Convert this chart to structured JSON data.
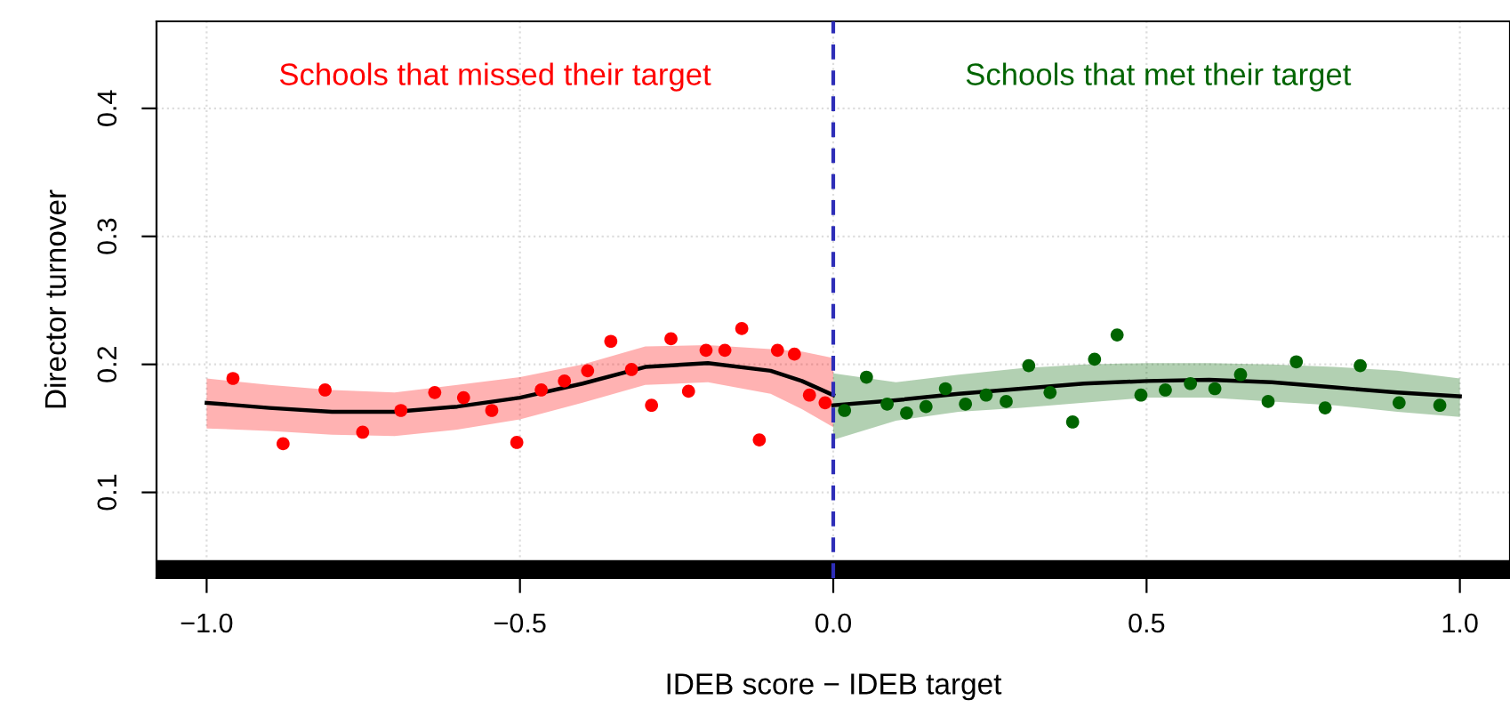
{
  "chart_data": {
    "type": "scatter",
    "xlabel": "IDEB score − IDEB target",
    "ylabel": "Director turnover",
    "annotations": [
      "Schools that missed their target",
      "Schools that met their target"
    ],
    "xlim": [
      -1.08,
      1.08
    ],
    "ylim": [
      0.033,
      0.468
    ],
    "xticks": [
      {
        "value": -1,
        "label": "−1.0"
      },
      {
        "value": -0.5,
        "label": "−0.5"
      },
      {
        "value": 0,
        "label": "0.0"
      },
      {
        "value": 0.5,
        "label": "0.5"
      },
      {
        "value": 1,
        "label": "1.0"
      }
    ],
    "yticks": [
      0.1,
      0.2,
      0.3,
      0.4
    ],
    "grid": true,
    "legend": false,
    "marker": "circle",
    "ref_lines": [
      {
        "axis": "x",
        "value": 0,
        "color": "#2e2eb8",
        "line_style": "dashed"
      }
    ],
    "bands": [
      {
        "axis": "y",
        "from": 0.033,
        "to": 0.047,
        "color": "#000000"
      }
    ],
    "series": [
      {
        "type": "line",
        "marker": "none",
        "color": "#000000",
        "x": [
          -1.0,
          -0.9,
          -0.8,
          -0.7,
          -0.6,
          -0.5,
          -0.4,
          -0.3,
          -0.2,
          -0.1,
          -0.05,
          0.0
        ],
        "values": [
          0.17,
          0.166,
          0.163,
          0.163,
          0.167,
          0.174,
          0.185,
          0.198,
          0.201,
          0.195,
          0.187,
          0.176
        ],
        "lower": [
          0.15,
          0.148,
          0.145,
          0.144,
          0.149,
          0.157,
          0.17,
          0.184,
          0.186,
          0.177,
          0.165,
          0.151
        ],
        "upper": [
          0.189,
          0.184,
          0.18,
          0.178,
          0.184,
          0.19,
          0.2,
          0.214,
          0.215,
          0.212,
          0.21,
          0.205
        ]
      },
      {
        "color": "#ff0000",
        "x": [
          -0.958,
          -0.878,
          -0.811,
          -0.751,
          -0.69,
          -0.636,
          -0.59,
          -0.545,
          -0.505,
          -0.466,
          -0.429,
          -0.392,
          -0.355,
          -0.322,
          -0.29,
          -0.259,
          -0.231,
          -0.203,
          -0.173,
          -0.146,
          -0.118,
          -0.089,
          -0.062,
          -0.038,
          -0.013
        ],
        "values": [
          0.189,
          0.138,
          0.18,
          0.147,
          0.164,
          0.178,
          0.174,
          0.164,
          0.139,
          0.18,
          0.187,
          0.195,
          0.218,
          0.196,
          0.168,
          0.22,
          0.179,
          0.211,
          0.211,
          0.228,
          0.141,
          0.211,
          0.208,
          0.176,
          0.17
        ]
      },
      {
        "type": "line",
        "marker": "none",
        "color": "#000000",
        "x": [
          0.0,
          0.1,
          0.2,
          0.3,
          0.4,
          0.5,
          0.6,
          0.7,
          0.8,
          0.9,
          1.0
        ],
        "values": [
          0.168,
          0.172,
          0.177,
          0.181,
          0.185,
          0.187,
          0.188,
          0.186,
          0.182,
          0.178,
          0.175
        ],
        "lower": [
          0.141,
          0.156,
          0.163,
          0.166,
          0.17,
          0.174,
          0.174,
          0.171,
          0.168,
          0.163,
          0.159
        ],
        "upper": [
          0.193,
          0.186,
          0.192,
          0.197,
          0.2,
          0.201,
          0.201,
          0.2,
          0.198,
          0.195,
          0.189
        ]
      },
      {
        "color": "#006400",
        "x": [
          0.018,
          0.053,
          0.086,
          0.117,
          0.148,
          0.179,
          0.211,
          0.244,
          0.276,
          0.312,
          0.346,
          0.382,
          0.417,
          0.453,
          0.491,
          0.53,
          0.57,
          0.609,
          0.65,
          0.694,
          0.739,
          0.785,
          0.841,
          0.903,
          0.968
        ],
        "values": [
          0.164,
          0.19,
          0.169,
          0.162,
          0.167,
          0.181,
          0.169,
          0.176,
          0.171,
          0.199,
          0.178,
          0.155,
          0.204,
          0.223,
          0.176,
          0.18,
          0.185,
          0.181,
          0.192,
          0.171,
          0.202,
          0.166,
          0.199,
          0.17,
          0.168
        ]
      }
    ]
  }
}
